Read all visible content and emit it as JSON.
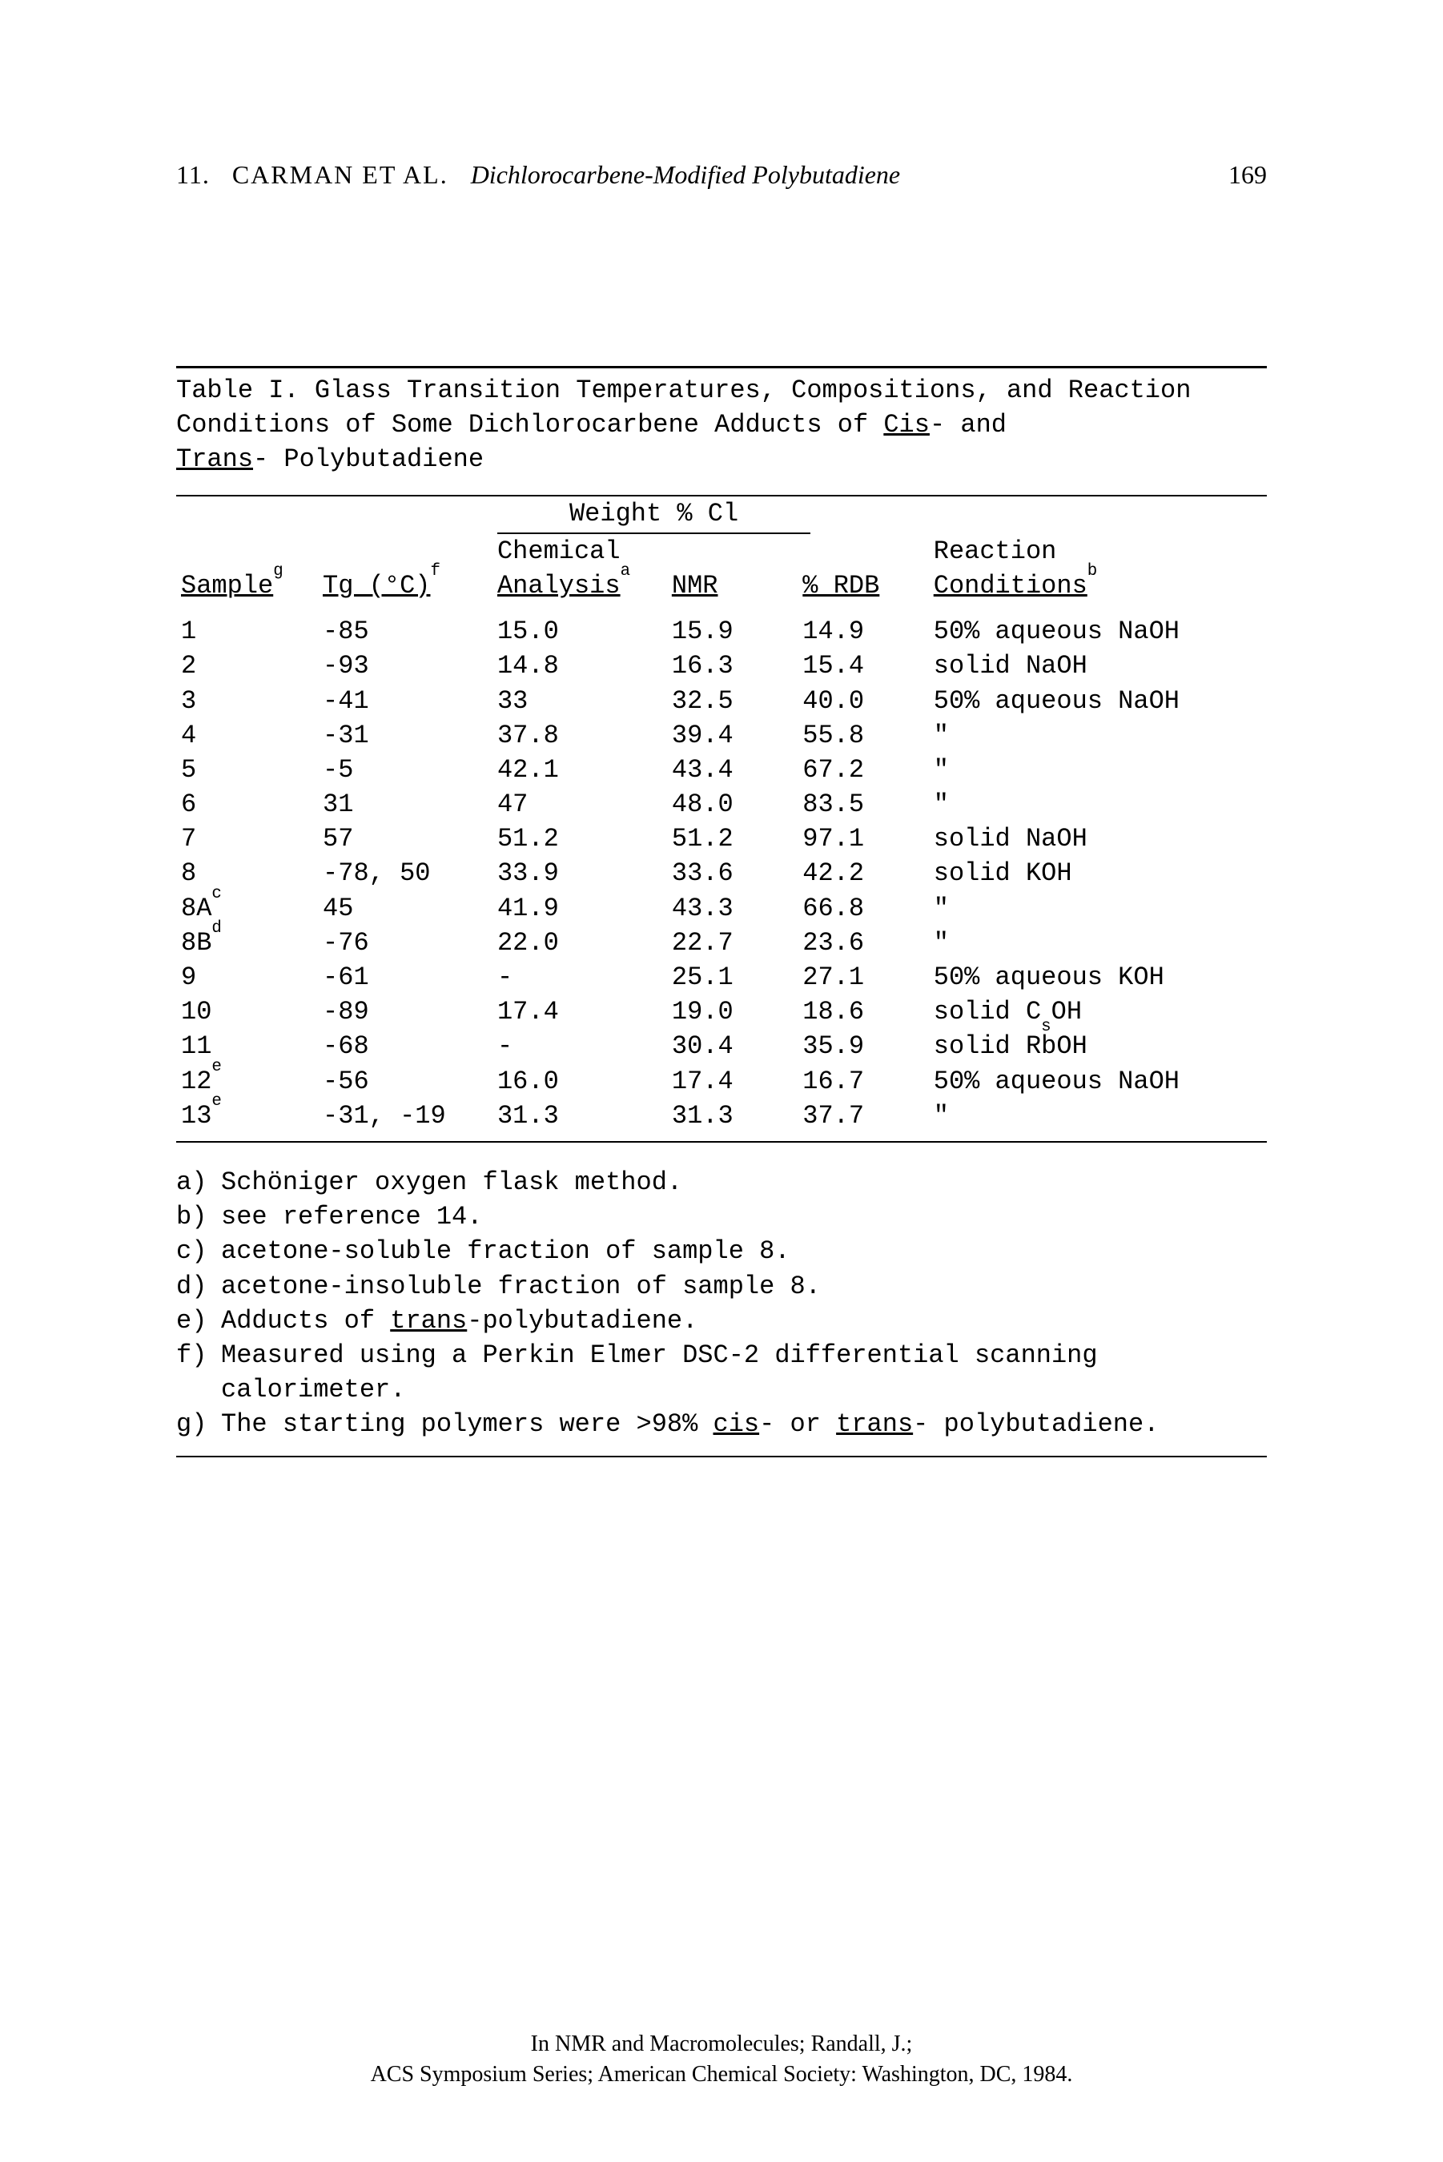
{
  "header": {
    "chapter": "11.",
    "authors": "CARMAN ET AL.",
    "title": "Dichlorocarbene-Modified Polybutadiene",
    "page": "169"
  },
  "caption": {
    "lead": "Table I.  Glass Transition Temperatures, Compositions, and Reaction Conditions of Some Dichlorocarbene Adducts of ",
    "cis": "Cis",
    "mid": "- and ",
    "trans": "Trans",
    "tail": "- Polybutadiene"
  },
  "columns": {
    "group": "Weight % Cl",
    "sample": "Sample",
    "sample_sup": "g",
    "tg": "Tg (°C)",
    "tg_sup": "f",
    "chem": "Chemical Analysis",
    "chem_sup": "a",
    "nmr": "NMR",
    "rdb": "% RDB",
    "cond": "Reaction Conditions",
    "cond_sup": "b"
  },
  "rows": [
    {
      "s": "1",
      "sup": "",
      "tg": "-85",
      "chem": "15.0",
      "nmr": "15.9",
      "rdb": "14.9",
      "cond": "50% aqueous NaOH"
    },
    {
      "s": "2",
      "sup": "",
      "tg": "-93",
      "chem": "14.8",
      "nmr": "16.3",
      "rdb": "15.4",
      "cond": "solid NaOH"
    },
    {
      "s": "3",
      "sup": "",
      "tg": "-41",
      "chem": "33",
      "nmr": "32.5",
      "rdb": "40.0",
      "cond": "50% aqueous NaOH"
    },
    {
      "s": "4",
      "sup": "",
      "tg": "-31",
      "chem": "37.8",
      "nmr": "39.4",
      "rdb": "55.8",
      "cond": "\""
    },
    {
      "s": "5",
      "sup": "",
      "tg": "-5",
      "chem": "42.1",
      "nmr": "43.4",
      "rdb": "67.2",
      "cond": "\""
    },
    {
      "s": "6",
      "sup": "",
      "tg": "31",
      "chem": "47",
      "nmr": "48.0",
      "rdb": "83.5",
      "cond": "\""
    },
    {
      "s": "7",
      "sup": "",
      "tg": "57",
      "chem": "51.2",
      "nmr": "51.2",
      "rdb": "97.1",
      "cond": "solid NaOH"
    },
    {
      "s": "8",
      "sup": "",
      "tg": "-78, 50",
      "chem": "33.9",
      "nmr": "33.6",
      "rdb": "42.2",
      "cond": "solid KOH"
    },
    {
      "s": "8A",
      "sup": "c",
      "tg": "45",
      "chem": "41.9",
      "nmr": "43.3",
      "rdb": "66.8",
      "cond": "\""
    },
    {
      "s": "8B",
      "sup": "d",
      "tg": "-76",
      "chem": "22.0",
      "nmr": "22.7",
      "rdb": "23.6",
      "cond": "\""
    },
    {
      "s": "9",
      "sup": "",
      "tg": "-61",
      "chem": "-",
      "nmr": "25.1",
      "rdb": "27.1",
      "cond": "50% aqueous KOH"
    },
    {
      "s": "10",
      "sup": "",
      "tg": "-89",
      "chem": "17.4",
      "nmr": "19.0",
      "rdb": "18.6",
      "cond": "solid CsOH",
      "cond_html": "solid C<sub>s</sub>OH"
    },
    {
      "s": "11",
      "sup": "",
      "tg": "-68",
      "chem": "-",
      "nmr": "30.4",
      "rdb": "35.9",
      "cond": "solid RbOH"
    },
    {
      "s": "12",
      "sup": "e",
      "tg": "-56",
      "chem": "16.0",
      "nmr": "17.4",
      "rdb": "16.7",
      "cond": "50% aqueous NaOH"
    },
    {
      "s": "13",
      "sup": "e",
      "tg": "-31, -19",
      "chem": "31.3",
      "nmr": "31.3",
      "rdb": "37.7",
      "cond": "\""
    }
  ],
  "footnotes": [
    {
      "lab": "a)",
      "txt": "Schöniger oxygen flask method."
    },
    {
      "lab": "b)",
      "txt": "see reference 14."
    },
    {
      "lab": "c)",
      "txt": "acetone-soluble fraction of sample 8."
    },
    {
      "lab": "d)",
      "txt": "acetone-insoluble fraction of sample 8."
    },
    {
      "lab": "e)",
      "txt_html": "Adducts of <span class=\"u\">trans</span>-polybutadiene."
    },
    {
      "lab": "f)",
      "txt": "Measured using a Perkin Elmer DSC-2 differential scanning calorimeter."
    },
    {
      "lab": "g)",
      "txt_html": "The starting polymers were >98% <span class=\"u\">cis</span>- or <span class=\"u\">trans</span>- polybutadiene."
    }
  ],
  "imprint": {
    "line1": "In NMR and Macromolecules; Randall, J.;",
    "line2": "ACS Symposium Series; American Chemical Society: Washington, DC, 1984."
  }
}
